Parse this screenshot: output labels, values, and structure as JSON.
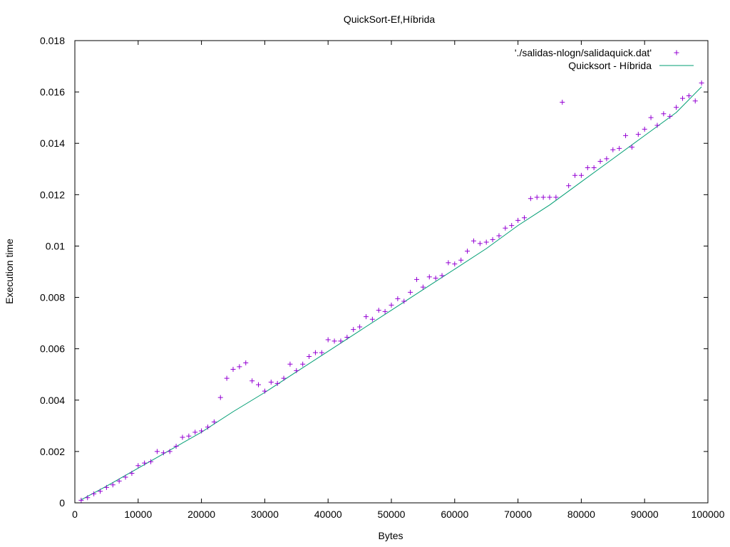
{
  "chart_data": {
    "type": "scatter",
    "title": "QuickSort-Ef,Híbrida",
    "xlabel": "Bytes",
    "ylabel": "Execution time",
    "xlim": [
      0,
      100000
    ],
    "ylim": [
      0,
      0.018
    ],
    "xticks": [
      0,
      10000,
      20000,
      30000,
      40000,
      50000,
      60000,
      70000,
      80000,
      90000,
      100000
    ],
    "yticks": [
      0,
      0.002,
      0.004,
      0.006,
      0.008,
      0.01,
      0.012,
      0.014,
      0.016,
      0.018
    ],
    "xtick_labels": [
      "0",
      "10000",
      "20000",
      "30000",
      "40000",
      "50000",
      "60000",
      "70000",
      "80000",
      "90000",
      "100000"
    ],
    "ytick_labels": [
      "0",
      "0.002",
      "0.004",
      "0.006",
      "0.008",
      "0.01",
      "0.012",
      "0.014",
      "0.016",
      "0.018"
    ],
    "grid": false,
    "legend_position": "top-right",
    "series": [
      {
        "name": "'./salidas-nlogn/salidaquick.dat'",
        "kind": "points",
        "marker": "plus",
        "color": "#9400d3",
        "x": [
          1000,
          2000,
          3000,
          4000,
          5000,
          6000,
          7000,
          8000,
          9000,
          10000,
          11000,
          12000,
          13000,
          14000,
          15000,
          16000,
          17000,
          18000,
          19000,
          20000,
          21000,
          22000,
          23000,
          24000,
          25000,
          26000,
          27000,
          28000,
          29000,
          30000,
          31000,
          32000,
          33000,
          34000,
          35000,
          36000,
          37000,
          38000,
          39000,
          40000,
          41000,
          42000,
          43000,
          44000,
          45000,
          46000,
          47000,
          48000,
          49000,
          50000,
          51000,
          52000,
          53000,
          54000,
          55000,
          56000,
          57000,
          58000,
          59000,
          60000,
          61000,
          62000,
          63000,
          64000,
          65000,
          66000,
          67000,
          68000,
          69000,
          70000,
          71000,
          72000,
          73000,
          74000,
          75000,
          76000,
          77000,
          78000,
          79000,
          80000,
          81000,
          82000,
          83000,
          84000,
          85000,
          86000,
          87000,
          88000,
          89000,
          90000,
          91000,
          92000,
          93000,
          94000,
          95000,
          96000,
          97000,
          98000,
          99000
        ],
        "y": [
          0.0001,
          0.0002,
          0.00035,
          0.00045,
          0.0006,
          0.0007,
          0.00085,
          0.001,
          0.00115,
          0.00145,
          0.00155,
          0.0016,
          0.002,
          0.00195,
          0.002,
          0.0022,
          0.00255,
          0.0026,
          0.00275,
          0.0028,
          0.00295,
          0.00315,
          0.0041,
          0.00485,
          0.0052,
          0.0053,
          0.00545,
          0.00475,
          0.0046,
          0.00435,
          0.0047,
          0.00465,
          0.00485,
          0.0054,
          0.00515,
          0.0054,
          0.0057,
          0.00585,
          0.00585,
          0.00635,
          0.0063,
          0.0063,
          0.00645,
          0.00675,
          0.00685,
          0.00725,
          0.00715,
          0.0075,
          0.00745,
          0.0077,
          0.00795,
          0.00785,
          0.0082,
          0.0087,
          0.0084,
          0.0088,
          0.00875,
          0.00885,
          0.00935,
          0.0093,
          0.00945,
          0.0098,
          0.0102,
          0.0101,
          0.01015,
          0.01025,
          0.0104,
          0.0107,
          0.0108,
          0.011,
          0.0111,
          0.01185,
          0.0119,
          0.0119,
          0.0119,
          0.0119,
          0.0156,
          0.01235,
          0.01275,
          0.01275,
          0.01305,
          0.01305,
          0.0133,
          0.0134,
          0.01375,
          0.0138,
          0.0143,
          0.01385,
          0.01435,
          0.01455,
          0.015,
          0.0147,
          0.01515,
          0.01505,
          0.0154,
          0.01575,
          0.01585,
          0.01565,
          0.01635
        ]
      },
      {
        "name": "Quicksort - Híbrida",
        "kind": "line",
        "color": "#009e73",
        "x": [
          1000,
          5000,
          10000,
          15000,
          20000,
          25000,
          30000,
          35000,
          40000,
          45000,
          50000,
          55000,
          60000,
          65000,
          70000,
          75000,
          80000,
          85000,
          90000,
          95000,
          99000
        ],
        "y": [
          0.00012,
          0.00065,
          0.00135,
          0.00205,
          0.00275,
          0.00355,
          0.0043,
          0.0051,
          0.0059,
          0.0067,
          0.0075,
          0.0083,
          0.0091,
          0.0099,
          0.0108,
          0.0116,
          0.0125,
          0.0134,
          0.0143,
          0.0152,
          0.0162
        ]
      }
    ]
  }
}
